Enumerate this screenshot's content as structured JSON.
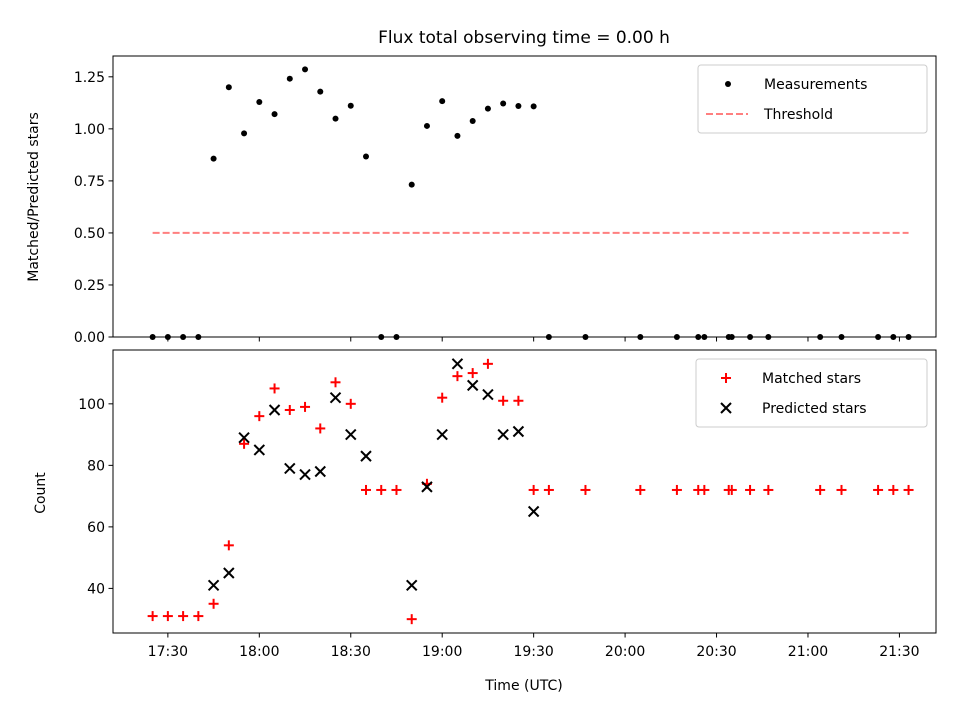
{
  "chart_data": [
    {
      "type": "scatter",
      "title": "Flux total observing time = 0.00 h",
      "xlabel": "",
      "ylabel": "Matched/Predicted stars",
      "xlim": [
        "17:12",
        "21:42"
      ],
      "ylim": [
        0,
        1.35
      ],
      "yticks": [
        "0.00",
        "0.25",
        "0.50",
        "0.75",
        "1.00",
        "1.25"
      ],
      "xticks": [
        "17:30",
        "18:00",
        "18:30",
        "19:00",
        "19:30",
        "20:00",
        "20:30",
        "21:00",
        "21:30"
      ],
      "legend": {
        "placement": "top-right",
        "entries": [
          "Measurements",
          "Threshold"
        ]
      },
      "colors": {
        "measurements": "#000000",
        "threshold": "#ff7f7f"
      },
      "series": [
        {
          "name": "Measurements",
          "marker": "dot",
          "x": [
            "17:25",
            "17:30",
            "17:35",
            "17:40",
            "17:45",
            "17:50",
            "17:55",
            "18:00",
            "18:05",
            "18:10",
            "18:15",
            "18:20",
            "18:25",
            "18:30",
            "18:35",
            "18:40",
            "18:45",
            "18:50",
            "18:55",
            "19:00",
            "19:05",
            "19:10",
            "19:15",
            "19:20",
            "19:25",
            "19:30",
            "19:35",
            "19:47",
            "20:05",
            "20:17",
            "20:24",
            "20:26",
            "20:34",
            "20:35",
            "20:41",
            "20:47",
            "21:04",
            "21:11",
            "21:23",
            "21:28",
            "21:33"
          ],
          "y": [
            0,
            0,
            0,
            0,
            0.857,
            1.2,
            0.978,
            1.129,
            1.071,
            1.241,
            1.286,
            1.179,
            1.049,
            1.111,
            0.867,
            0,
            0,
            0.732,
            1.014,
            1.133,
            0.966,
            1.038,
            1.097,
            1.122,
            1.11,
            1.108,
            0,
            0,
            0,
            0,
            0,
            0,
            0,
            0,
            0,
            0,
            0,
            0,
            0,
            0,
            0
          ]
        },
        {
          "name": "Threshold",
          "style": "dashed",
          "x": [
            "17:25",
            "21:33"
          ],
          "y": [
            0.5,
            0.5
          ]
        }
      ]
    },
    {
      "type": "scatter",
      "title": "",
      "xlabel": "Time (UTC)",
      "ylabel": "Count",
      "xlim": [
        "17:12",
        "21:42"
      ],
      "ylim": [
        25.5,
        117.5
      ],
      "yticks": [
        "40",
        "60",
        "80",
        "100"
      ],
      "xticks": [
        "17:30",
        "18:00",
        "18:30",
        "19:00",
        "19:30",
        "20:00",
        "20:30",
        "21:00",
        "21:30"
      ],
      "legend": {
        "placement": "top-right",
        "entries": [
          "Matched stars",
          "Predicted stars"
        ]
      },
      "colors": {
        "matched": "#ff0000",
        "predicted": "#000000"
      },
      "series": [
        {
          "name": "Matched stars",
          "marker": "plus",
          "x": [
            "17:25",
            "17:30",
            "17:35",
            "17:40",
            "17:45",
            "17:50",
            "17:55",
            "18:00",
            "18:05",
            "18:10",
            "18:15",
            "18:20",
            "18:25",
            "18:30",
            "18:35",
            "18:40",
            "18:45",
            "18:50",
            "18:55",
            "19:00",
            "19:05",
            "19:10",
            "19:15",
            "19:20",
            "19:25",
            "19:30",
            "19:35",
            "19:47",
            "20:05",
            "20:17",
            "20:24",
            "20:26",
            "20:34",
            "20:35",
            "20:41",
            "20:47",
            "21:04",
            "21:11",
            "21:23",
            "21:28",
            "21:33"
          ],
          "y": [
            31,
            31,
            31,
            31,
            35,
            54,
            87,
            96,
            105,
            98,
            99,
            92,
            107,
            100,
            72,
            72,
            72,
            30,
            74,
            102,
            109,
            110,
            113,
            101,
            101,
            72,
            72,
            72,
            72,
            72,
            72,
            72,
            72,
            72,
            72,
            72,
            72,
            72,
            72,
            72,
            72
          ]
        },
        {
          "name": "Predicted stars",
          "marker": "x",
          "x": [
            "17:45",
            "17:50",
            "17:55",
            "18:00",
            "18:05",
            "18:10",
            "18:15",
            "18:20",
            "18:25",
            "18:30",
            "18:35",
            "18:50",
            "18:55",
            "19:00",
            "19:05",
            "19:10",
            "19:15",
            "19:20",
            "19:25",
            "19:30"
          ],
          "y": [
            41,
            45,
            89,
            85,
            98,
            79,
            77,
            78,
            102,
            90,
            83,
            41,
            73,
            90,
            113,
            106,
            103,
            90,
            91,
            65
          ]
        }
      ]
    }
  ]
}
